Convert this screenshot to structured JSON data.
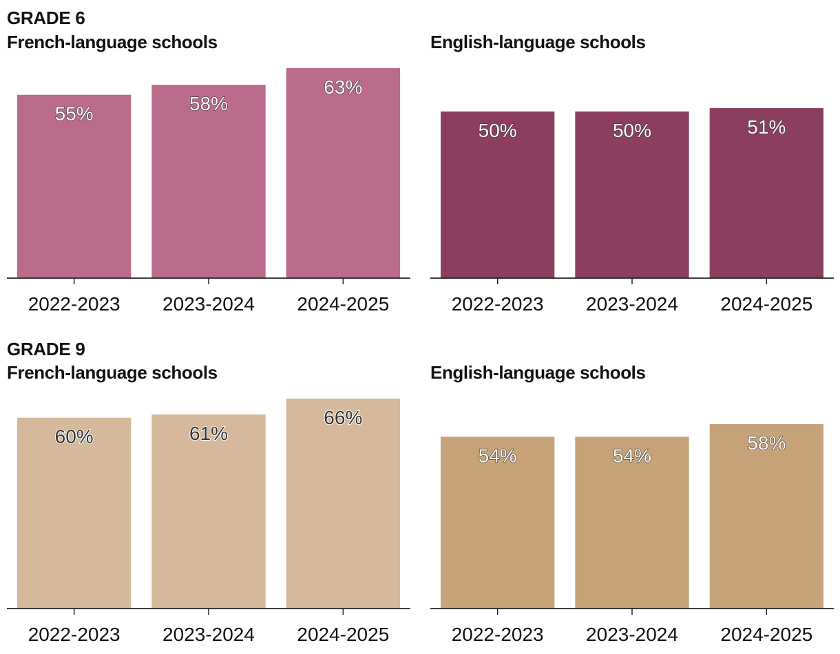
{
  "colors": {
    "g6_french": "#bb6b8b",
    "g6_english": "#8b3e60",
    "g9_french": "#d5b99a",
    "g9_english": "#c6a378",
    "axis": "#222222"
  },
  "chart_data": [
    {
      "type": "bar",
      "group": "GRADE 6",
      "title": "French-language schools",
      "categories": [
        "2022-2023",
        "2023-2024",
        "2024-2025"
      ],
      "values": [
        55,
        58,
        63
      ],
      "data_labels": [
        "55%",
        "58%",
        "63%"
      ],
      "ylim": [
        0,
        63
      ],
      "color_key": "g6_french",
      "label_style": "light"
    },
    {
      "type": "bar",
      "group": "",
      "title": "English-language schools",
      "categories": [
        "2022-2023",
        "2023-2024",
        "2024-2025"
      ],
      "values": [
        50,
        50,
        51
      ],
      "data_labels": [
        "50%",
        "50%",
        "51%"
      ],
      "ylim": [
        0,
        63
      ],
      "color_key": "g6_english",
      "label_style": "light"
    },
    {
      "type": "bar",
      "group": "GRADE 9",
      "title": "French-language schools",
      "categories": [
        "2022-2023",
        "2023-2024",
        "2024-2025"
      ],
      "values": [
        60,
        61,
        66
      ],
      "data_labels": [
        "60%",
        "61%",
        "66%"
      ],
      "ylim": [
        0,
        66
      ],
      "color_key": "g9_french",
      "label_style": "dark"
    },
    {
      "type": "bar",
      "group": "",
      "title": "English-language schools",
      "categories": [
        "2022-2023",
        "2023-2024",
        "2024-2025"
      ],
      "values": [
        54,
        54,
        58
      ],
      "data_labels": [
        "54%",
        "54%",
        "58%"
      ],
      "ylim": [
        0,
        66
      ],
      "color_key": "g9_english",
      "label_style": "light"
    }
  ]
}
